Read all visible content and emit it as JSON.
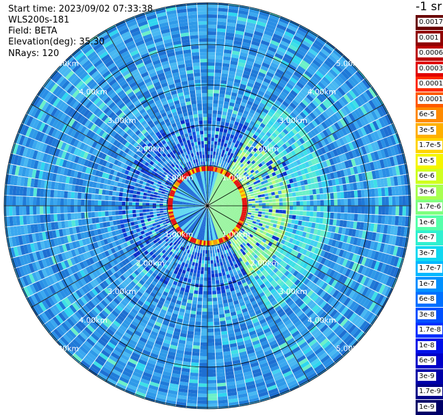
{
  "header": {
    "start_time": "Start time: 2023/09/02 07:33:38",
    "instrument": "WLS200s-181",
    "field": "Field: BETA",
    "elevation": "Elevation(deg): 35.30",
    "nrays": "NRays: 120"
  },
  "colorbar": {
    "title": "-1 sr",
    "labels": [
      "0.0017",
      "0.001",
      "0.0006",
      "0.0003",
      "0.00017",
      "0.0001",
      "6e-5",
      "3e-5",
      "1.7e-5",
      "1e-5",
      "6e-6",
      "3e-6",
      "1.7e-6",
      "1e-6",
      "6e-7",
      "3e-7",
      "1.7e-7",
      "1e-7",
      "6e-8",
      "3e-8",
      "1.7e-8",
      "1e-8",
      "6e-9",
      "3e-9",
      "1.7e-9",
      "1e-9"
    ],
    "colors": [
      "#6a0000",
      "#900000",
      "#bb0000",
      "#e10000",
      "#ff2a00",
      "#ff5a00",
      "#ff8a00",
      "#ffb000",
      "#ffd400",
      "#f5f500",
      "#d0ff20",
      "#a8ff50",
      "#80ff80",
      "#55ffaa",
      "#30f0d0",
      "#10d8f0",
      "#00b8ff",
      "#0090ff",
      "#0070ff",
      "#0050ff",
      "#0030ff",
      "#0010e8",
      "#0000c8",
      "#0000a8",
      "#000088",
      "#000068"
    ]
  },
  "range_labels": {
    "r1": "1.00km",
    "r2": "2.00km",
    "r3": "3.00km",
    "r4": "4.00km",
    "r5": "5.00km"
  }
}
